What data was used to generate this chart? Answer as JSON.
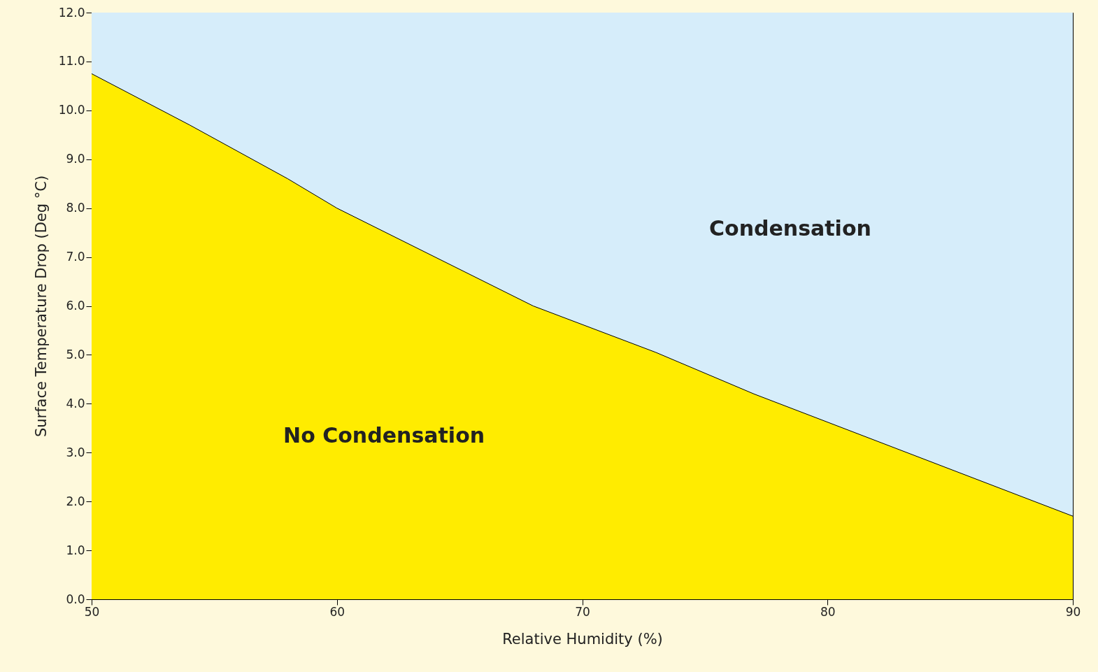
{
  "chart_data": {
    "type": "area",
    "xlabel": "Relative Humidity (%)",
    "ylabel": "Surface Temperature Drop (Deg °C)",
    "x": [
      50,
      54,
      58,
      60,
      68,
      73,
      77,
      90
    ],
    "series": [
      {
        "color": "#ffec00",
        "values": [
          10.75,
          9.7,
          8.6,
          8.0,
          6.0,
          5.05,
          4.2,
          1.7
        ]
      }
    ],
    "xlim": [
      50,
      90
    ],
    "xticks": [
      50,
      60,
      70,
      80,
      90
    ],
    "ylim": [
      0,
      12
    ],
    "yticks": [
      {
        "value": 0,
        "label": "0.0"
      },
      {
        "value": 1,
        "label": "1.0"
      },
      {
        "value": 2,
        "label": "2.0"
      },
      {
        "value": 3,
        "label": "3.0"
      },
      {
        "value": 4,
        "label": "4.0"
      },
      {
        "value": 5,
        "label": "5.0"
      },
      {
        "value": 6,
        "label": "6.0"
      },
      {
        "value": 7,
        "label": "7.0"
      },
      {
        "value": 8,
        "label": "8.0"
      },
      {
        "value": 9,
        "label": "9.0"
      },
      {
        "value": 10,
        "label": "10.0"
      },
      {
        "value": 11,
        "label": "11.0"
      },
      {
        "value": 12,
        "label": "12.0"
      }
    ],
    "bands": [
      {
        "axis": "y",
        "from": 0,
        "to": 12,
        "color": "#d6edfa"
      }
    ],
    "annotations": [
      "Condensation",
      "No Condensation"
    ],
    "grid": false
  }
}
